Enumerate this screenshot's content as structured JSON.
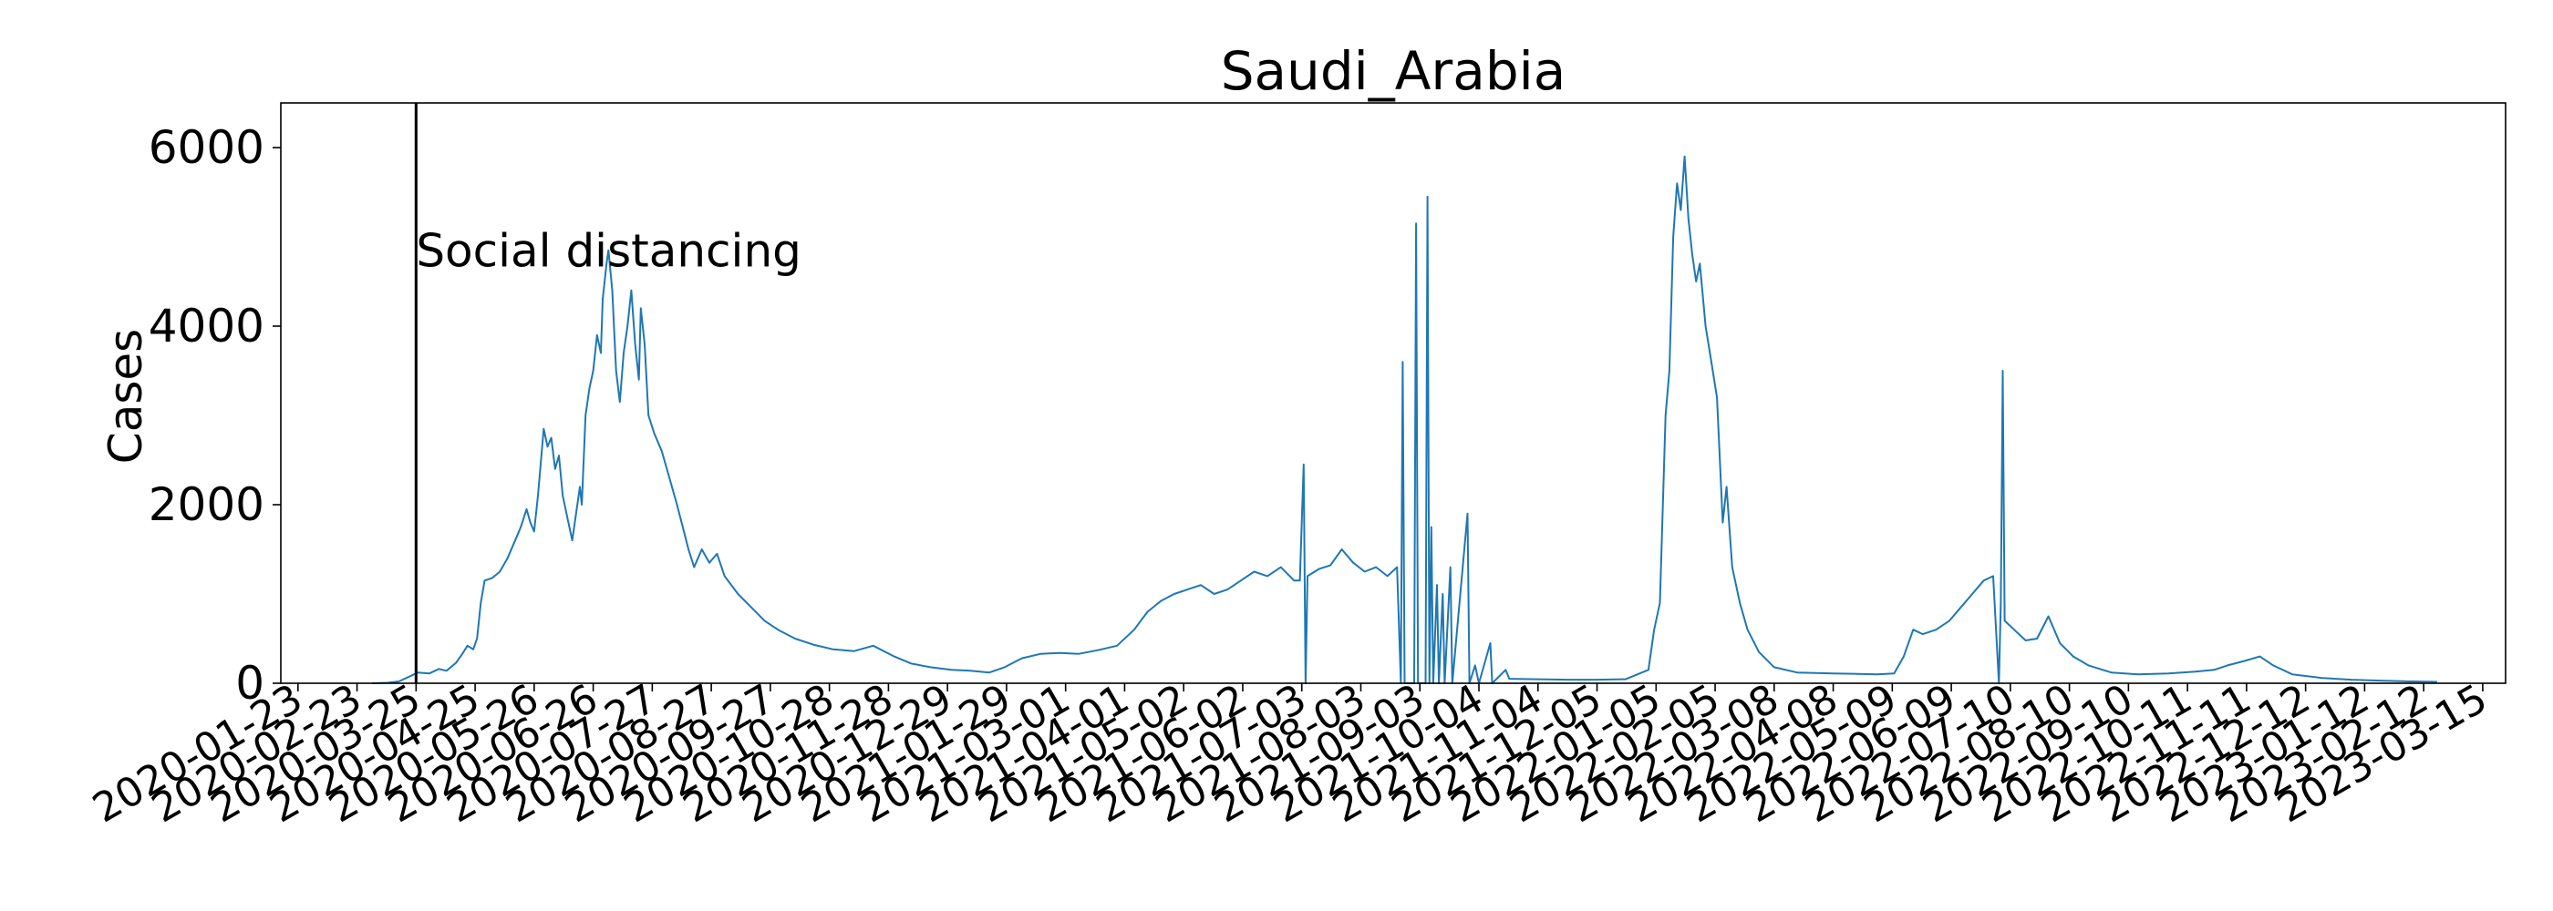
{
  "chart_data": {
    "type": "line",
    "title": "Saudi_Arabia",
    "xlabel": "",
    "ylabel": "Cases",
    "ylim": [
      0,
      6500
    ],
    "yticks": [
      0,
      2000,
      4000,
      6000
    ],
    "xlim": [
      "2020-01-14",
      "2023-03-27"
    ],
    "xticks": [
      "2020-01-23",
      "2020-02-23",
      "2020-03-25",
      "2020-04-25",
      "2020-05-26",
      "2020-06-26",
      "2020-07-27",
      "2020-08-27",
      "2020-09-27",
      "2020-10-28",
      "2020-11-28",
      "2020-12-29",
      "2021-01-29",
      "2021-03-01",
      "2021-04-01",
      "2021-05-02",
      "2021-06-02",
      "2021-07-03",
      "2021-08-03",
      "2021-09-03",
      "2021-10-04",
      "2021-11-04",
      "2021-12-05",
      "2022-01-05",
      "2022-02-05",
      "2022-03-08",
      "2022-04-08",
      "2022-05-09",
      "2022-06-09",
      "2022-07-10",
      "2022-08-10",
      "2022-09-10",
      "2022-10-11",
      "2022-11-11",
      "2022-12-12",
      "2023-01-12",
      "2023-02-12",
      "2023-03-15"
    ],
    "grid": false,
    "line_color": "#1f77b4",
    "annotations": [
      {
        "type": "vline",
        "x": "2020-03-25",
        "label": "Social distancing",
        "label_y": 4850,
        "color": "#000000"
      }
    ],
    "series": [
      {
        "points": [
          [
            "2020-03-02",
            0
          ],
          [
            "2020-03-10",
            5
          ],
          [
            "2020-03-16",
            20
          ],
          [
            "2020-03-22",
            80
          ],
          [
            "2020-03-26",
            120
          ],
          [
            "2020-04-01",
            110
          ],
          [
            "2020-04-06",
            160
          ],
          [
            "2020-04-10",
            140
          ],
          [
            "2020-04-15",
            230
          ],
          [
            "2020-04-18",
            320
          ],
          [
            "2020-04-21",
            420
          ],
          [
            "2020-04-24",
            380
          ],
          [
            "2020-04-26",
            500
          ],
          [
            "2020-04-28",
            900
          ],
          [
            "2020-04-30",
            1150
          ],
          [
            "2020-05-04",
            1180
          ],
          [
            "2020-05-08",
            1250
          ],
          [
            "2020-05-12",
            1400
          ],
          [
            "2020-05-16",
            1600
          ],
          [
            "2020-05-19",
            1750
          ],
          [
            "2020-05-22",
            1950
          ],
          [
            "2020-05-24",
            1800
          ],
          [
            "2020-05-26",
            1700
          ],
          [
            "2020-05-28",
            2100
          ],
          [
            "2020-05-31",
            2850
          ],
          [
            "2020-06-02",
            2650
          ],
          [
            "2020-06-04",
            2750
          ],
          [
            "2020-06-06",
            2400
          ],
          [
            "2020-06-08",
            2550
          ],
          [
            "2020-06-10",
            2100
          ],
          [
            "2020-06-13",
            1800
          ],
          [
            "2020-06-15",
            1600
          ],
          [
            "2020-06-17",
            1900
          ],
          [
            "2020-06-19",
            2200
          ],
          [
            "2020-06-20",
            2000
          ],
          [
            "2020-06-22",
            3000
          ],
          [
            "2020-06-24",
            3300
          ],
          [
            "2020-06-26",
            3500
          ],
          [
            "2020-06-28",
            3900
          ],
          [
            "2020-06-30",
            3700
          ],
          [
            "2020-07-01",
            4300
          ],
          [
            "2020-07-03",
            4700
          ],
          [
            "2020-07-04",
            4850
          ],
          [
            "2020-07-06",
            4400
          ],
          [
            "2020-07-08",
            3500
          ],
          [
            "2020-07-10",
            3150
          ],
          [
            "2020-07-12",
            3700
          ],
          [
            "2020-07-14",
            4000
          ],
          [
            "2020-07-16",
            4400
          ],
          [
            "2020-07-18",
            3800
          ],
          [
            "2020-07-20",
            3400
          ],
          [
            "2020-07-21",
            4200
          ],
          [
            "2020-07-23",
            3800
          ],
          [
            "2020-07-25",
            3000
          ],
          [
            "2020-07-28",
            2800
          ],
          [
            "2020-08-01",
            2600
          ],
          [
            "2020-08-05",
            2300
          ],
          [
            "2020-08-09",
            2000
          ],
          [
            "2020-08-12",
            1750
          ],
          [
            "2020-08-15",
            1500
          ],
          [
            "2020-08-18",
            1300
          ],
          [
            "2020-08-22",
            1500
          ],
          [
            "2020-08-26",
            1350
          ],
          [
            "2020-08-30",
            1450
          ],
          [
            "2020-09-03",
            1200
          ],
          [
            "2020-09-10",
            1000
          ],
          [
            "2020-09-17",
            850
          ],
          [
            "2020-09-24",
            700
          ],
          [
            "2020-10-01",
            600
          ],
          [
            "2020-10-10",
            500
          ],
          [
            "2020-10-20",
            430
          ],
          [
            "2020-10-30",
            380
          ],
          [
            "2020-11-10",
            360
          ],
          [
            "2020-11-20",
            420
          ],
          [
            "2020-12-01",
            300
          ],
          [
            "2020-12-10",
            220
          ],
          [
            "2020-12-20",
            180
          ],
          [
            "2020-12-31",
            150
          ],
          [
            "2021-01-10",
            140
          ],
          [
            "2021-01-20",
            120
          ],
          [
            "2021-01-28",
            180
          ],
          [
            "2021-02-06",
            280
          ],
          [
            "2021-02-16",
            330
          ],
          [
            "2021-02-26",
            340
          ],
          [
            "2021-03-08",
            330
          ],
          [
            "2021-03-18",
            370
          ],
          [
            "2021-03-28",
            420
          ],
          [
            "2021-04-06",
            600
          ],
          [
            "2021-04-13",
            800
          ],
          [
            "2021-04-20",
            920
          ],
          [
            "2021-04-27",
            1000
          ],
          [
            "2021-05-04",
            1050
          ],
          [
            "2021-05-11",
            1100
          ],
          [
            "2021-05-18",
            1000
          ],
          [
            "2021-05-25",
            1050
          ],
          [
            "2021-06-01",
            1150
          ],
          [
            "2021-06-08",
            1250
          ],
          [
            "2021-06-15",
            1200
          ],
          [
            "2021-06-22",
            1300
          ],
          [
            "2021-06-29",
            1150
          ],
          [
            "2021-07-02",
            1150
          ],
          [
            "2021-07-04",
            2450
          ],
          [
            "2021-07-05",
            0
          ],
          [
            "2021-07-06",
            1200
          ],
          [
            "2021-07-12",
            1280
          ],
          [
            "2021-07-18",
            1320
          ],
          [
            "2021-07-24",
            1500
          ],
          [
            "2021-07-30",
            1350
          ],
          [
            "2021-08-05",
            1250
          ],
          [
            "2021-08-11",
            1300
          ],
          [
            "2021-08-17",
            1200
          ],
          [
            "2021-08-22",
            1300
          ],
          [
            "2021-08-24",
            0
          ],
          [
            "2021-08-25",
            3600
          ],
          [
            "2021-08-26",
            0
          ],
          [
            "2021-08-31",
            0
          ],
          [
            "2021-09-01",
            5150
          ],
          [
            "2021-09-02",
            0
          ],
          [
            "2021-09-06",
            0
          ],
          [
            "2021-09-07",
            5450
          ],
          [
            "2021-09-08",
            0
          ],
          [
            "2021-09-09",
            1750
          ],
          [
            "2021-09-10",
            0
          ],
          [
            "2021-09-12",
            1100
          ],
          [
            "2021-09-13",
            0
          ],
          [
            "2021-09-15",
            1000
          ],
          [
            "2021-09-16",
            0
          ],
          [
            "2021-09-19",
            1300
          ],
          [
            "2021-09-20",
            0
          ],
          [
            "2021-09-28",
            1900
          ],
          [
            "2021-09-29",
            0
          ],
          [
            "2021-10-02",
            200
          ],
          [
            "2021-10-04",
            0
          ],
          [
            "2021-10-10",
            450
          ],
          [
            "2021-10-11",
            0
          ],
          [
            "2021-10-18",
            150
          ],
          [
            "2021-10-20",
            50
          ],
          [
            "2021-11-04",
            45
          ],
          [
            "2021-11-20",
            40
          ],
          [
            "2021-12-05",
            40
          ],
          [
            "2021-12-20",
            45
          ],
          [
            "2022-01-01",
            150
          ],
          [
            "2022-01-04",
            600
          ],
          [
            "2022-01-07",
            900
          ],
          [
            "2022-01-10",
            3000
          ],
          [
            "2022-01-12",
            3500
          ],
          [
            "2022-01-14",
            5000
          ],
          [
            "2022-01-16",
            5600
          ],
          [
            "2022-01-18",
            5300
          ],
          [
            "2022-01-20",
            5900
          ],
          [
            "2022-01-22",
            5200
          ],
          [
            "2022-01-24",
            4800
          ],
          [
            "2022-01-26",
            4500
          ],
          [
            "2022-01-28",
            4700
          ],
          [
            "2022-01-31",
            4000
          ],
          [
            "2022-02-03",
            3600
          ],
          [
            "2022-02-06",
            3200
          ],
          [
            "2022-02-09",
            1800
          ],
          [
            "2022-02-11",
            2200
          ],
          [
            "2022-02-14",
            1300
          ],
          [
            "2022-02-18",
            900
          ],
          [
            "2022-02-22",
            600
          ],
          [
            "2022-02-28",
            350
          ],
          [
            "2022-03-08",
            180
          ],
          [
            "2022-03-20",
            120
          ],
          [
            "2022-04-08",
            110
          ],
          [
            "2022-05-01",
            100
          ],
          [
            "2022-05-10",
            110
          ],
          [
            "2022-05-15",
            300
          ],
          [
            "2022-05-20",
            600
          ],
          [
            "2022-05-25",
            550
          ],
          [
            "2022-06-01",
            600
          ],
          [
            "2022-06-08",
            700
          ],
          [
            "2022-06-14",
            850
          ],
          [
            "2022-06-20",
            1000
          ],
          [
            "2022-06-26",
            1150
          ],
          [
            "2022-07-01",
            1200
          ],
          [
            "2022-07-04",
            0
          ],
          [
            "2022-07-05",
            900
          ],
          [
            "2022-07-06",
            3500
          ],
          [
            "2022-07-07",
            700
          ],
          [
            "2022-07-12",
            600
          ],
          [
            "2022-07-18",
            480
          ],
          [
            "2022-07-24",
            500
          ],
          [
            "2022-07-30",
            750
          ],
          [
            "2022-08-05",
            450
          ],
          [
            "2022-08-12",
            300
          ],
          [
            "2022-08-20",
            200
          ],
          [
            "2022-09-01",
            120
          ],
          [
            "2022-09-15",
            100
          ],
          [
            "2022-10-01",
            110
          ],
          [
            "2022-10-15",
            130
          ],
          [
            "2022-10-25",
            150
          ],
          [
            "2022-11-01",
            200
          ],
          [
            "2022-11-10",
            250
          ],
          [
            "2022-11-18",
            300
          ],
          [
            "2022-11-25",
            200
          ],
          [
            "2022-12-05",
            100
          ],
          [
            "2022-12-20",
            60
          ],
          [
            "2023-01-05",
            40
          ],
          [
            "2023-01-20",
            30
          ],
          [
            "2023-02-05",
            20
          ],
          [
            "2023-02-19",
            15
          ]
        ]
      }
    ]
  }
}
